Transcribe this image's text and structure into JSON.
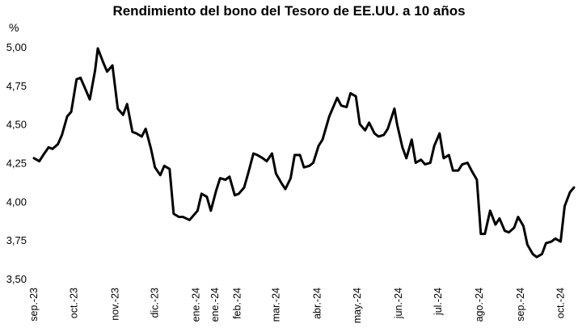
{
  "chart_data": {
    "type": "line",
    "title": "Rendimiento del bono del Tesoro de EE.UU. a 10 años",
    "y_unit": "%",
    "ylim": [
      3.5,
      5.0
    ],
    "grid": false,
    "y_ticks": [
      "3,50",
      "3,75",
      "4,00",
      "4,25",
      "4,50",
      "4,75",
      "5,00"
    ],
    "y_tick_values": [
      3.5,
      3.75,
      4.0,
      4.25,
      4.5,
      4.75,
      5.0
    ],
    "x_ticks": [
      "sep.-23",
      "oct.-23",
      "nov.-23",
      "dic.-23",
      "ene.-24",
      "ene.-24",
      "feb.-24",
      "mar.-24",
      "abr.-24",
      "may.-24",
      "jun.-24",
      "jul.-24",
      "ago.-24",
      "sep.-24",
      "oct.-24"
    ],
    "x_tick_dates": [
      "2023-09-01",
      "2023-10-01",
      "2023-11-01",
      "2023-12-01",
      "2024-01-01",
      "2024-01-15",
      "2024-02-01",
      "2024-03-01",
      "2024-04-01",
      "2024-05-01",
      "2024-06-01",
      "2024-07-01",
      "2024-08-01",
      "2024-09-01",
      "2024-10-01"
    ],
    "series": [
      {
        "color": "#000000",
        "x": [
          "2023-09-01",
          "2023-09-05",
          "2023-09-08",
          "2023-09-12",
          "2023-09-15",
          "2023-09-19",
          "2023-09-22",
          "2023-09-26",
          "2023-09-29",
          "2023-10-03",
          "2023-10-06",
          "2023-10-10",
          "2023-10-13",
          "2023-10-17",
          "2023-10-19",
          "2023-10-23",
          "2023-10-26",
          "2023-10-30",
          "2023-11-03",
          "2023-11-07",
          "2023-11-10",
          "2023-11-14",
          "2023-11-17",
          "2023-11-21",
          "2023-11-24",
          "2023-11-28",
          "2023-12-01",
          "2023-12-05",
          "2023-12-08",
          "2023-12-12",
          "2023-12-15",
          "2023-12-19",
          "2023-12-22",
          "2023-12-27",
          "2024-01-02",
          "2024-01-05",
          "2024-01-09",
          "2024-01-12",
          "2024-01-16",
          "2024-01-19",
          "2024-01-23",
          "2024-01-26",
          "2024-01-30",
          "2024-02-02",
          "2024-02-06",
          "2024-02-09",
          "2024-02-13",
          "2024-02-16",
          "2024-02-20",
          "2024-02-23",
          "2024-02-27",
          "2024-03-01",
          "2024-03-05",
          "2024-03-08",
          "2024-03-12",
          "2024-03-15",
          "2024-03-19",
          "2024-03-22",
          "2024-03-26",
          "2024-03-29",
          "2024-04-02",
          "2024-04-05",
          "2024-04-10",
          "2024-04-12",
          "2024-04-16",
          "2024-04-19",
          "2024-04-23",
          "2024-04-26",
          "2024-04-30",
          "2024-05-03",
          "2024-05-07",
          "2024-05-10",
          "2024-05-14",
          "2024-05-17",
          "2024-05-21",
          "2024-05-24",
          "2024-05-29",
          "2024-05-31",
          "2024-06-04",
          "2024-06-07",
          "2024-06-11",
          "2024-06-14",
          "2024-06-18",
          "2024-06-21",
          "2024-06-25",
          "2024-06-28",
          "2024-07-02",
          "2024-07-05",
          "2024-07-09",
          "2024-07-12",
          "2024-07-16",
          "2024-07-19",
          "2024-07-23",
          "2024-07-26",
          "2024-07-30",
          "2024-08-02",
          "2024-08-05",
          "2024-08-09",
          "2024-08-13",
          "2024-08-16",
          "2024-08-20",
          "2024-08-23",
          "2024-08-27",
          "2024-08-30",
          "2024-09-03",
          "2024-09-06",
          "2024-09-10",
          "2024-09-13",
          "2024-09-17",
          "2024-09-20",
          "2024-09-24",
          "2024-09-27",
          "2024-10-01",
          "2024-10-04",
          "2024-10-08",
          "2024-10-11"
        ],
        "y": [
          4.28,
          4.26,
          4.3,
          4.35,
          4.34,
          4.37,
          4.43,
          4.55,
          4.58,
          4.79,
          4.8,
          4.72,
          4.66,
          4.85,
          4.99,
          4.9,
          4.84,
          4.88,
          4.6,
          4.56,
          4.63,
          4.45,
          4.44,
          4.42,
          4.47,
          4.34,
          4.22,
          4.17,
          4.23,
          4.21,
          3.92,
          3.9,
          3.9,
          3.88,
          3.94,
          4.05,
          4.03,
          3.94,
          4.07,
          4.15,
          4.14,
          4.16,
          4.04,
          4.05,
          4.09,
          4.18,
          4.31,
          4.3,
          4.28,
          4.26,
          4.31,
          4.18,
          4.12,
          4.08,
          4.15,
          4.3,
          4.3,
          4.22,
          4.23,
          4.25,
          4.36,
          4.4,
          4.55,
          4.59,
          4.67,
          4.62,
          4.61,
          4.7,
          4.68,
          4.5,
          4.46,
          4.51,
          4.44,
          4.42,
          4.43,
          4.47,
          4.6,
          4.5,
          4.35,
          4.28,
          4.4,
          4.25,
          4.27,
          4.24,
          4.25,
          4.36,
          4.44,
          4.28,
          4.3,
          4.2,
          4.2,
          4.24,
          4.25,
          4.2,
          4.14,
          3.79,
          3.79,
          3.94,
          3.85,
          3.89,
          3.81,
          3.8,
          3.83,
          3.9,
          3.84,
          3.72,
          3.66,
          3.64,
          3.66,
          3.73,
          3.74,
          3.76,
          3.74,
          3.97,
          4.06,
          4.09
        ]
      }
    ]
  }
}
